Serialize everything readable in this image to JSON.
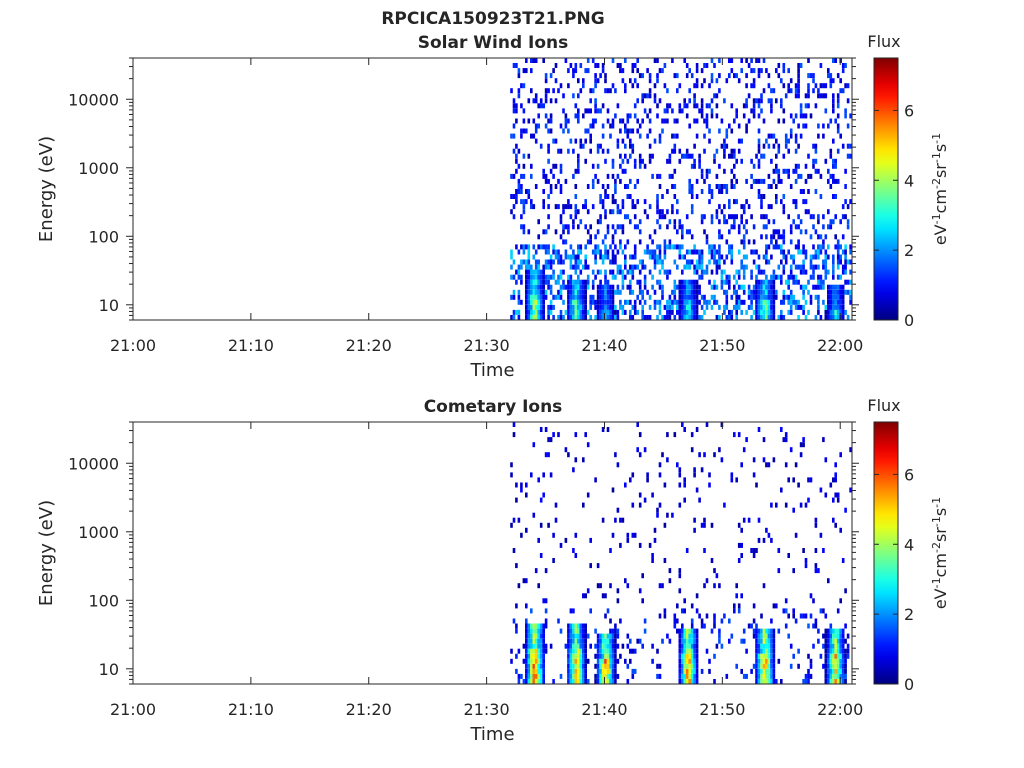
{
  "figure": {
    "title": "RPCICA150923T21.PNG"
  },
  "chart_data": [
    {
      "type": "heatmap",
      "title": "Solar Wind Ions",
      "xlabel": "Time",
      "ylabel": "Energy (eV)",
      "x_ticks": [
        "21:00",
        "21:10",
        "21:20",
        "21:30",
        "21:40",
        "21:50",
        "22:00"
      ],
      "x_range": [
        "21:00",
        "22:01"
      ],
      "y_scale": "log",
      "y_ticks": [
        "10",
        "100",
        "1000",
        "10000"
      ],
      "y_range": [
        6,
        40000
      ],
      "data_start": "21:32",
      "colorbar": {
        "title": "Flux",
        "unit_label": "eV-1cm-2sr-1s-1",
        "ticks": [
          "0",
          "2",
          "4",
          "6"
        ],
        "range": [
          0,
          7.5
        ],
        "colormap": "jet"
      },
      "bursts": [
        {
          "time": "21:34",
          "max_energy": 30,
          "peak": 5.0
        },
        {
          "time": "21:37.5",
          "max_energy": 25,
          "peak": 4.5
        },
        {
          "time": "21:40",
          "max_energy": 20,
          "peak": 3.0
        },
        {
          "time": "21:47",
          "max_energy": 25,
          "peak": 3.5
        },
        {
          "time": "21:53.5",
          "max_energy": 25,
          "peak": 4.5
        },
        {
          "time": "21:59.5",
          "max_energy": 20,
          "peak": 3.5
        }
      ],
      "background": {
        "density": 0.22,
        "typical_flux": 0.8
      }
    },
    {
      "type": "heatmap",
      "title": "Cometary Ions",
      "xlabel": "Time",
      "ylabel": "Energy (eV)",
      "x_ticks": [
        "21:00",
        "21:10",
        "21:20",
        "21:30",
        "21:40",
        "21:50",
        "22:00"
      ],
      "x_range": [
        "21:00",
        "22:01"
      ],
      "y_scale": "log",
      "y_ticks": [
        "10",
        "100",
        "1000",
        "10000"
      ],
      "y_range": [
        6,
        40000
      ],
      "data_start": "21:32",
      "colorbar": {
        "title": "Flux",
        "unit_label": "eV-1cm-2sr-1s-1",
        "ticks": [
          "0",
          "2",
          "4",
          "6"
        ],
        "range": [
          0,
          7.5
        ],
        "colormap": "jet"
      },
      "bursts": [
        {
          "time": "21:34",
          "max_energy": 45,
          "peak": 7.0
        },
        {
          "time": "21:37.5",
          "max_energy": 45,
          "peak": 6.0
        },
        {
          "time": "21:40",
          "max_energy": 30,
          "peak": 6.5
        },
        {
          "time": "21:47",
          "max_energy": 40,
          "peak": 6.5
        },
        {
          "time": "21:53.5",
          "max_energy": 40,
          "peak": 6.5
        },
        {
          "time": "21:59.5",
          "max_energy": 40,
          "peak": 6.0
        }
      ],
      "background": {
        "density": 0.06,
        "typical_flux": 0.5
      }
    }
  ]
}
